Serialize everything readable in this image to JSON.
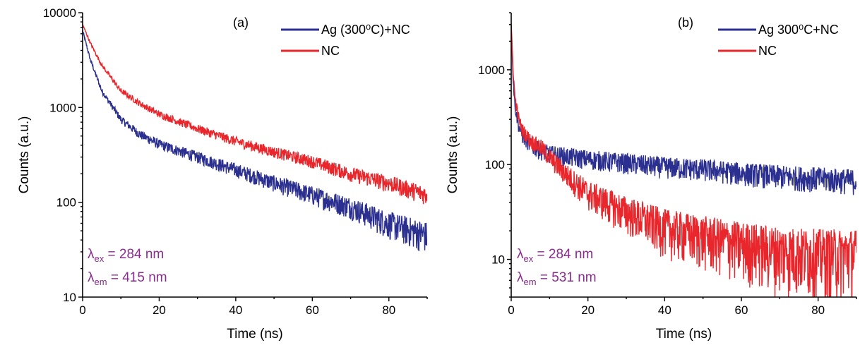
{
  "chart_data": [
    {
      "type": "line",
      "panel_label": "(a)",
      "xlabel": "Time (ns)",
      "ylabel": "Counts (a.u.)",
      "xlim": [
        0,
        90
      ],
      "ylim": [
        10,
        10000
      ],
      "yscale": "log",
      "x_ticks": [
        "0",
        "20",
        "40",
        "60",
        "80"
      ],
      "y_ticks": [
        "10",
        "100",
        "1000",
        "10000"
      ],
      "legend_position": "top-right",
      "series": [
        {
          "name": "Ag (300⁰C)+NC",
          "color": "#2b2f8f",
          "x": [
            0,
            2,
            5,
            10,
            15,
            20,
            30,
            40,
            50,
            60,
            70,
            80,
            90
          ],
          "y": [
            6500,
            3200,
            1500,
            750,
            520,
            410,
            300,
            220,
            160,
            120,
            90,
            60,
            45
          ]
        },
        {
          "name": "NC",
          "color": "#e8262b",
          "x": [
            0,
            2,
            5,
            10,
            15,
            20,
            30,
            40,
            50,
            60,
            70,
            80,
            90
          ],
          "y": [
            7500,
            4800,
            2800,
            1500,
            1100,
            850,
            600,
            440,
            340,
            270,
            200,
            160,
            120
          ]
        }
      ],
      "annotations": [
        {
          "symbol": "λ",
          "sub": "ex",
          "text": " = 284 nm"
        },
        {
          "symbol": "λ",
          "sub": "em",
          "text": " = 415 nm"
        }
      ]
    },
    {
      "type": "line",
      "panel_label": "(b)",
      "xlabel": "Time (ns)",
      "ylabel": "Counts (a.u.)",
      "xlim": [
        0,
        90
      ],
      "ylim": [
        4,
        4000
      ],
      "yscale": "log",
      "x_ticks": [
        "0",
        "20",
        "40",
        "60",
        "80"
      ],
      "y_ticks": [
        "10",
        "100",
        "1000"
      ],
      "legend_position": "top-right",
      "series": [
        {
          "name": "Ag 300⁰C+NC",
          "color": "#2b2f8f",
          "x": [
            0,
            0.5,
            1,
            2,
            3,
            5,
            8,
            10,
            20,
            30,
            40,
            50,
            60,
            70,
            80,
            90
          ],
          "y": [
            3000,
            800,
            400,
            250,
            200,
            160,
            140,
            130,
            115,
            105,
            95,
            90,
            82,
            76,
            72,
            68
          ]
        },
        {
          "name": "NC",
          "color": "#e8262b",
          "x": [
            0,
            0.5,
            1,
            2,
            3,
            5,
            8,
            10,
            15,
            20,
            30,
            40,
            50,
            60,
            70,
            80,
            90
          ],
          "y": [
            3000,
            1000,
            500,
            300,
            230,
            180,
            150,
            120,
            75,
            50,
            32,
            22,
            18,
            15,
            13,
            12,
            12
          ]
        }
      ],
      "annotations": [
        {
          "symbol": "λ",
          "sub": "ex",
          "text": " = 284 nm"
        },
        {
          "symbol": "λ",
          "sub": "em",
          "text": " = 531 nm"
        }
      ]
    }
  ]
}
